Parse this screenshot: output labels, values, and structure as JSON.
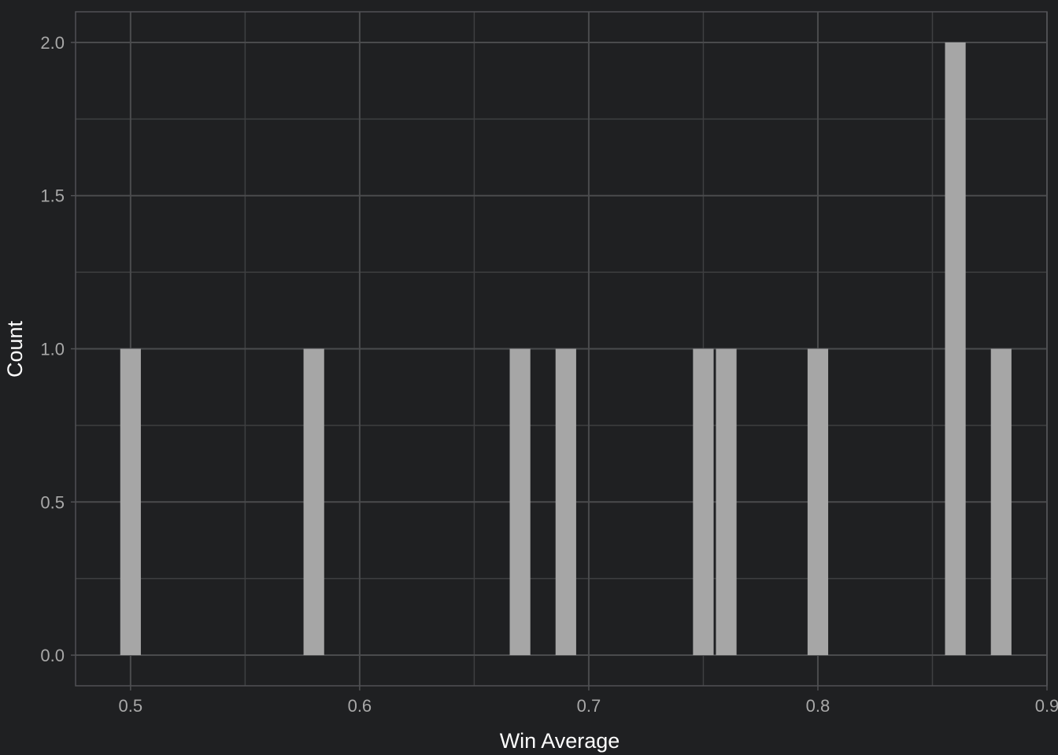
{
  "chart_data": {
    "type": "bar",
    "title": "",
    "xlabel": "Win Average",
    "ylabel": "Count",
    "xlim": [
      0.476,
      0.9
    ],
    "ylim": [
      -0.1,
      2.1
    ],
    "x_ticks": [
      0.5,
      0.6,
      0.7,
      0.8,
      0.9
    ],
    "x_tick_labels": [
      "0.5",
      "0.6",
      "0.7",
      "0.8",
      "0.9"
    ],
    "y_ticks": [
      0.0,
      0.5,
      1.0,
      1.5,
      2.0
    ],
    "y_tick_labels": [
      "0.0",
      "0.5",
      "1.0",
      "1.5",
      "2.0"
    ],
    "bin_width": 0.009,
    "bins": [
      {
        "x": 0.5,
        "count": 1
      },
      {
        "x": 0.58,
        "count": 1
      },
      {
        "x": 0.67,
        "count": 1
      },
      {
        "x": 0.69,
        "count": 1
      },
      {
        "x": 0.75,
        "count": 1
      },
      {
        "x": 0.76,
        "count": 1
      },
      {
        "x": 0.8,
        "count": 1
      },
      {
        "x": 0.86,
        "count": 2
      },
      {
        "x": 0.88,
        "count": 1
      }
    ],
    "grid": true,
    "colors": {
      "background": "#1f2022",
      "bar": "#a6a6a6",
      "grid_major": "#4a4b4d",
      "grid_minor": "#3e3f41",
      "panel_border": "#505154",
      "tick_text": "#a8a8a8",
      "axis_title": "#ffffff"
    }
  }
}
